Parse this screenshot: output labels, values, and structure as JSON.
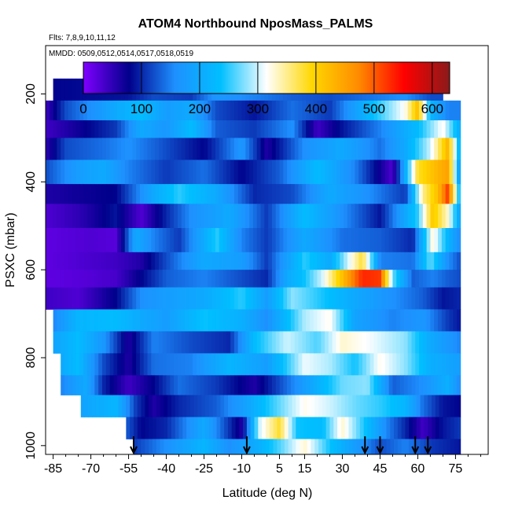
{
  "chart_data": {
    "type": "heatmap",
    "title": "ATOM4 Northbound NposMass_PALMS",
    "flights_note": "Flts: 7,8,9,10,11,12",
    "dates_note": "MMDD: 0509,0512,0514,0517,0518,0519",
    "xlabel": "Latitude (deg N)",
    "ylabel": "PSXC (mbar)",
    "xlim": [
      -88,
      88
    ],
    "ylim": [
      1020,
      90
    ],
    "x_ticks": [
      -85,
      -70,
      -55,
      -40,
      -25,
      -10,
      5,
      15,
      30,
      45,
      60,
      75
    ],
    "x_tick_labels": [
      "-85",
      "-70",
      "-55",
      "-40",
      "-25",
      "-10",
      "5",
      "15",
      "30",
      "45",
      "60",
      "75"
    ],
    "y_ticks": [
      200,
      400,
      600,
      800,
      1000
    ],
    "y_tick_labels": [
      "200",
      "400",
      "600",
      "800",
      "1000"
    ],
    "colorbar": {
      "min": 0,
      "max": 630,
      "ticks": [
        0,
        100,
        200,
        300,
        400,
        500,
        600
      ],
      "tick_labels": [
        "0",
        "100",
        "200",
        "300",
        "400",
        "500",
        "600"
      ],
      "colors": [
        "#7f00ff",
        "#00008b",
        "#1e90ff",
        "#00bfff",
        "#ffffff",
        "#ffd700",
        "#ff8c00",
        "#ff0000",
        "#8b1a1a"
      ]
    },
    "profile_markers_lat": [
      -53,
      -8,
      39,
      45,
      59,
      64
    ],
    "bands": [
      {
        "p_top": 165,
        "p_bot": 215,
        "x_start": -85,
        "x_end": 70,
        "knots": [
          [
            -85,
            80
          ],
          [
            -55,
            90
          ],
          [
            -45,
            120
          ],
          [
            -30,
            110
          ],
          [
            -20,
            170
          ],
          [
            -5,
            150
          ],
          [
            10,
            130
          ],
          [
            25,
            120
          ],
          [
            40,
            140
          ],
          [
            55,
            160
          ],
          [
            65,
            120
          ]
        ]
      },
      {
        "p_top": 215,
        "p_bot": 260,
        "x_start": -88,
        "x_end": 77,
        "knots": [
          [
            -88,
            40
          ],
          [
            -80,
            120
          ],
          [
            -70,
            160
          ],
          [
            -60,
            200
          ],
          [
            -50,
            230
          ],
          [
            -40,
            180
          ],
          [
            -30,
            200
          ],
          [
            -20,
            120
          ],
          [
            -5,
            90
          ],
          [
            10,
            140
          ],
          [
            25,
            110
          ],
          [
            40,
            220
          ],
          [
            55,
            320
          ],
          [
            60,
            420
          ],
          [
            65,
            220
          ],
          [
            72,
            150
          ]
        ]
      },
      {
        "p_top": 260,
        "p_bot": 300,
        "x_start": -88,
        "x_end": 77,
        "knots": [
          [
            -88,
            40
          ],
          [
            -75,
            70
          ],
          [
            -60,
            110
          ],
          [
            -50,
            200
          ],
          [
            -40,
            170
          ],
          [
            -30,
            230
          ],
          [
            -20,
            130
          ],
          [
            -5,
            110
          ],
          [
            10,
            160
          ],
          [
            20,
            40
          ],
          [
            30,
            90
          ],
          [
            45,
            150
          ],
          [
            60,
            230
          ],
          [
            70,
            320
          ],
          [
            77,
            200
          ]
        ]
      },
      {
        "p_top": 300,
        "p_bot": 350,
        "x_start": -88,
        "x_end": 77,
        "knots": [
          [
            -88,
            50
          ],
          [
            -80,
            120
          ],
          [
            -65,
            140
          ],
          [
            -55,
            160
          ],
          [
            -40,
            120
          ],
          [
            -25,
            80
          ],
          [
            -10,
            170
          ],
          [
            0,
            60
          ],
          [
            15,
            160
          ],
          [
            30,
            200
          ],
          [
            45,
            140
          ],
          [
            55,
            200
          ],
          [
            65,
            300
          ],
          [
            72,
            430
          ],
          [
            77,
            200
          ]
        ]
      },
      {
        "p_top": 350,
        "p_bot": 405,
        "x_start": -88,
        "x_end": 77,
        "knots": [
          [
            -88,
            120
          ],
          [
            -75,
            180
          ],
          [
            -65,
            200
          ],
          [
            -55,
            150
          ],
          [
            -40,
            110
          ],
          [
            -25,
            140
          ],
          [
            -10,
            80
          ],
          [
            5,
            130
          ],
          [
            20,
            230
          ],
          [
            35,
            150
          ],
          [
            50,
            30
          ],
          [
            60,
            380
          ],
          [
            68,
            430
          ],
          [
            72,
            450
          ],
          [
            77,
            160
          ]
        ]
      },
      {
        "p_top": 405,
        "p_bot": 450,
        "x_start": -88,
        "x_end": 77,
        "knots": [
          [
            -88,
            60
          ],
          [
            -75,
            70
          ],
          [
            -60,
            80
          ],
          [
            -45,
            200
          ],
          [
            -35,
            250
          ],
          [
            -20,
            200
          ],
          [
            -5,
            100
          ],
          [
            10,
            120
          ],
          [
            25,
            200
          ],
          [
            40,
            160
          ],
          [
            55,
            110
          ],
          [
            62,
            350
          ],
          [
            68,
            420
          ],
          [
            72,
            520
          ],
          [
            77,
            200
          ]
        ]
      },
      {
        "p_top": 450,
        "p_bot": 505,
        "x_start": -88,
        "x_end": 77,
        "knots": [
          [
            -88,
            30
          ],
          [
            -75,
            50
          ],
          [
            -60,
            90
          ],
          [
            -50,
            30
          ],
          [
            -40,
            100
          ],
          [
            -30,
            160
          ],
          [
            -15,
            200
          ],
          [
            0,
            110
          ],
          [
            15,
            230
          ],
          [
            30,
            160
          ],
          [
            45,
            90
          ],
          [
            60,
            250
          ],
          [
            66,
            410
          ],
          [
            72,
            330
          ],
          [
            77,
            180
          ]
        ]
      },
      {
        "p_top": 505,
        "p_bot": 560,
        "x_start": -88,
        "x_end": 77,
        "knots": [
          [
            -88,
            20
          ],
          [
            -80,
            25
          ],
          [
            -70,
            30
          ],
          [
            -60,
            25
          ],
          [
            -52,
            200
          ],
          [
            -45,
            150
          ],
          [
            -35,
            110
          ],
          [
            -20,
            250
          ],
          [
            -10,
            150
          ],
          [
            0,
            110
          ],
          [
            15,
            200
          ],
          [
            30,
            140
          ],
          [
            45,
            130
          ],
          [
            58,
            100
          ],
          [
            66,
            330
          ],
          [
            72,
            220
          ],
          [
            77,
            150
          ]
        ]
      },
      {
        "p_top": 560,
        "p_bot": 600,
        "x_start": -88,
        "x_end": 77,
        "knots": [
          [
            -88,
            20
          ],
          [
            -75,
            30
          ],
          [
            -60,
            40
          ],
          [
            -50,
            60
          ],
          [
            -40,
            120
          ],
          [
            -25,
            200
          ],
          [
            -10,
            180
          ],
          [
            0,
            110
          ],
          [
            15,
            250
          ],
          [
            25,
            200
          ],
          [
            38,
            380
          ],
          [
            45,
            150
          ],
          [
            58,
            140
          ],
          [
            65,
            270
          ],
          [
            72,
            160
          ],
          [
            77,
            120
          ]
        ]
      },
      {
        "p_top": 600,
        "p_bot": 640,
        "x_start": -88,
        "x_end": 77,
        "knots": [
          [
            -88,
            20
          ],
          [
            -75,
            25
          ],
          [
            -60,
            35
          ],
          [
            -50,
            80
          ],
          [
            -40,
            130
          ],
          [
            -25,
            150
          ],
          [
            -10,
            120
          ],
          [
            0,
            100
          ],
          [
            8,
            200
          ],
          [
            15,
            240
          ],
          [
            22,
            300
          ],
          [
            30,
            420
          ],
          [
            38,
            530
          ],
          [
            45,
            520
          ],
          [
            50,
            270
          ],
          [
            58,
            130
          ],
          [
            66,
            150
          ],
          [
            72,
            130
          ],
          [
            77,
            120
          ]
        ]
      },
      {
        "p_top": 640,
        "p_bot": 690,
        "x_start": -88,
        "x_end": 77,
        "knots": [
          [
            -88,
            40
          ],
          [
            -75,
            30
          ],
          [
            -60,
            80
          ],
          [
            -50,
            160
          ],
          [
            -40,
            180
          ],
          [
            -25,
            200
          ],
          [
            -10,
            250
          ],
          [
            0,
            180
          ],
          [
            10,
            280
          ],
          [
            20,
            250
          ],
          [
            35,
            200
          ],
          [
            50,
            160
          ],
          [
            62,
            130
          ],
          [
            70,
            90
          ],
          [
            77,
            100
          ]
        ]
      },
      {
        "p_top": 690,
        "p_bot": 740,
        "x_start": -85,
        "x_end": 77,
        "knots": [
          [
            -85,
            150
          ],
          [
            -75,
            220
          ],
          [
            -60,
            230
          ],
          [
            -50,
            200
          ],
          [
            -40,
            180
          ],
          [
            -25,
            240
          ],
          [
            -10,
            210
          ],
          [
            0,
            160
          ],
          [
            15,
            290
          ],
          [
            25,
            320
          ],
          [
            35,
            190
          ],
          [
            50,
            150
          ],
          [
            62,
            170
          ],
          [
            72,
            110
          ],
          [
            77,
            90
          ]
        ]
      },
      {
        "p_top": 740,
        "p_bot": 790,
        "x_start": -85,
        "x_end": 77,
        "knots": [
          [
            -85,
            190
          ],
          [
            -75,
            230
          ],
          [
            -65,
            170
          ],
          [
            -55,
            60
          ],
          [
            -45,
            150
          ],
          [
            -30,
            120
          ],
          [
            -15,
            100
          ],
          [
            -5,
            230
          ],
          [
            8,
            300
          ],
          [
            20,
            260
          ],
          [
            30,
            330
          ],
          [
            42,
            310
          ],
          [
            55,
            280
          ],
          [
            65,
            200
          ],
          [
            77,
            150
          ]
        ]
      },
      {
        "p_top": 790,
        "p_bot": 840,
        "x_start": -82,
        "x_end": 77,
        "knots": [
          [
            -82,
            200
          ],
          [
            -75,
            230
          ],
          [
            -65,
            120
          ],
          [
            -55,
            60
          ],
          [
            -45,
            140
          ],
          [
            -30,
            150
          ],
          [
            -15,
            220
          ],
          [
            0,
            180
          ],
          [
            15,
            310
          ],
          [
            25,
            290
          ],
          [
            35,
            240
          ],
          [
            45,
            320
          ],
          [
            55,
            280
          ],
          [
            65,
            210
          ],
          [
            77,
            180
          ]
        ]
      },
      {
        "p_top": 840,
        "p_bot": 885,
        "x_start": -82,
        "x_end": 77,
        "knots": [
          [
            -82,
            150
          ],
          [
            -72,
            200
          ],
          [
            -65,
            100
          ],
          [
            -55,
            40
          ],
          [
            -45,
            80
          ],
          [
            -35,
            140
          ],
          [
            -20,
            110
          ],
          [
            -5,
            60
          ],
          [
            10,
            150
          ],
          [
            20,
            210
          ],
          [
            30,
            270
          ],
          [
            40,
            280
          ],
          [
            50,
            130
          ],
          [
            62,
            160
          ],
          [
            72,
            210
          ],
          [
            77,
            150
          ]
        ]
      },
      {
        "p_top": 885,
        "p_bot": 935,
        "x_start": -74,
        "x_end": 77,
        "knots": [
          [
            -74,
            190
          ],
          [
            -60,
            220
          ],
          [
            -52,
            110
          ],
          [
            -45,
            60
          ],
          [
            -35,
            100
          ],
          [
            -20,
            130
          ],
          [
            -10,
            180
          ],
          [
            0,
            240
          ],
          [
            15,
            320
          ],
          [
            25,
            300
          ],
          [
            35,
            270
          ],
          [
            45,
            250
          ],
          [
            55,
            220
          ],
          [
            62,
            140
          ],
          [
            70,
            90
          ],
          [
            77,
            80
          ]
        ]
      },
      {
        "p_top": 935,
        "p_bot": 985,
        "x_start": -56,
        "x_end": 77,
        "knots": [
          [
            -56,
            130
          ],
          [
            -50,
            80
          ],
          [
            -40,
            100
          ],
          [
            -25,
            200
          ],
          [
            -10,
            60
          ],
          [
            -3,
            300
          ],
          [
            5,
            380
          ],
          [
            12,
            240
          ],
          [
            22,
            230
          ],
          [
            30,
            330
          ],
          [
            40,
            230
          ],
          [
            48,
            150
          ],
          [
            55,
            100
          ],
          [
            62,
            40
          ],
          [
            70,
            90
          ],
          [
            77,
            110
          ]
        ]
      },
      {
        "p_top": 985,
        "p_bot": 1020,
        "x_start": -53,
        "x_end": 77,
        "knots": [
          [
            -53,
            110
          ],
          [
            -45,
            140
          ],
          [
            -35,
            180
          ],
          [
            -25,
            220
          ],
          [
            -15,
            160
          ],
          [
            -5,
            200
          ],
          [
            5,
            260
          ],
          [
            15,
            330
          ],
          [
            25,
            240
          ],
          [
            35,
            180
          ],
          [
            45,
            120
          ],
          [
            55,
            150
          ],
          [
            65,
            110
          ],
          [
            77,
            90
          ]
        ]
      }
    ]
  }
}
